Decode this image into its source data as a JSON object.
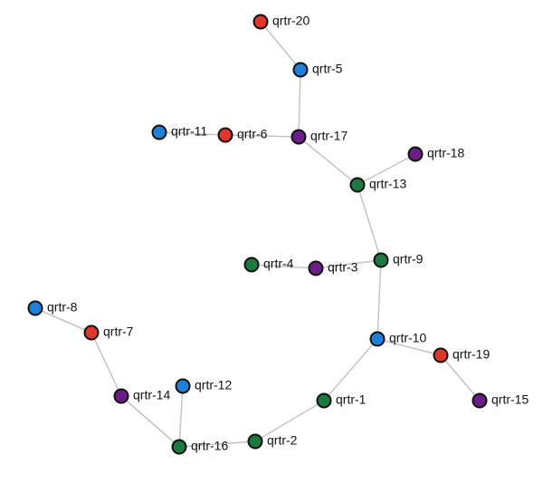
{
  "nodes": [
    {
      "label": "qrtr-20",
      "color": "#e0352b"
    },
    {
      "label": "qrtr-5",
      "color": "#1f80d8"
    },
    {
      "label": "qrtr-17",
      "color": "#6b1f86"
    },
    {
      "label": "qrtr-6",
      "color": "#e0352b"
    },
    {
      "label": "qrtr-11",
      "color": "#1f80d8"
    },
    {
      "label": "qrtr-18",
      "color": "#6b1f86"
    },
    {
      "label": "qrtr-13",
      "color": "#1c7a40"
    },
    {
      "label": "qrtr-9",
      "color": "#1c7a40"
    },
    {
      "label": "qrtr-3",
      "color": "#6b1f86"
    },
    {
      "label": "qrtr-4",
      "color": "#1c7a40"
    },
    {
      "label": "qrtr-10",
      "color": "#1f80d8"
    },
    {
      "label": "qrtr-19",
      "color": "#e0352b"
    },
    {
      "label": "qrtr-15",
      "color": "#6b1f86"
    },
    {
      "label": "qrtr-1",
      "color": "#1c7a40"
    },
    {
      "label": "qrtr-2",
      "color": "#1c7a40"
    },
    {
      "label": "qrtr-16",
      "color": "#1c7a40"
    },
    {
      "label": "qrtr-12",
      "color": "#1f80d8"
    },
    {
      "label": "qrtr-14",
      "color": "#6b1f86"
    },
    {
      "label": "qrtr-7",
      "color": "#e0352b"
    },
    {
      "label": "qrtr-8",
      "color": "#1f80d8"
    }
  ],
  "edges": [
    [
      0,
      1
    ],
    [
      1,
      2
    ],
    [
      3,
      2
    ],
    [
      4,
      3
    ],
    [
      2,
      6
    ],
    [
      5,
      6
    ],
    [
      6,
      7
    ],
    [
      8,
      7
    ],
    [
      9,
      8
    ],
    [
      7,
      10
    ],
    [
      10,
      11
    ],
    [
      11,
      12
    ],
    [
      10,
      13
    ],
    [
      13,
      14
    ],
    [
      14,
      15
    ],
    [
      16,
      15
    ],
    [
      17,
      15
    ],
    [
      18,
      17
    ],
    [
      19,
      18
    ]
  ]
}
